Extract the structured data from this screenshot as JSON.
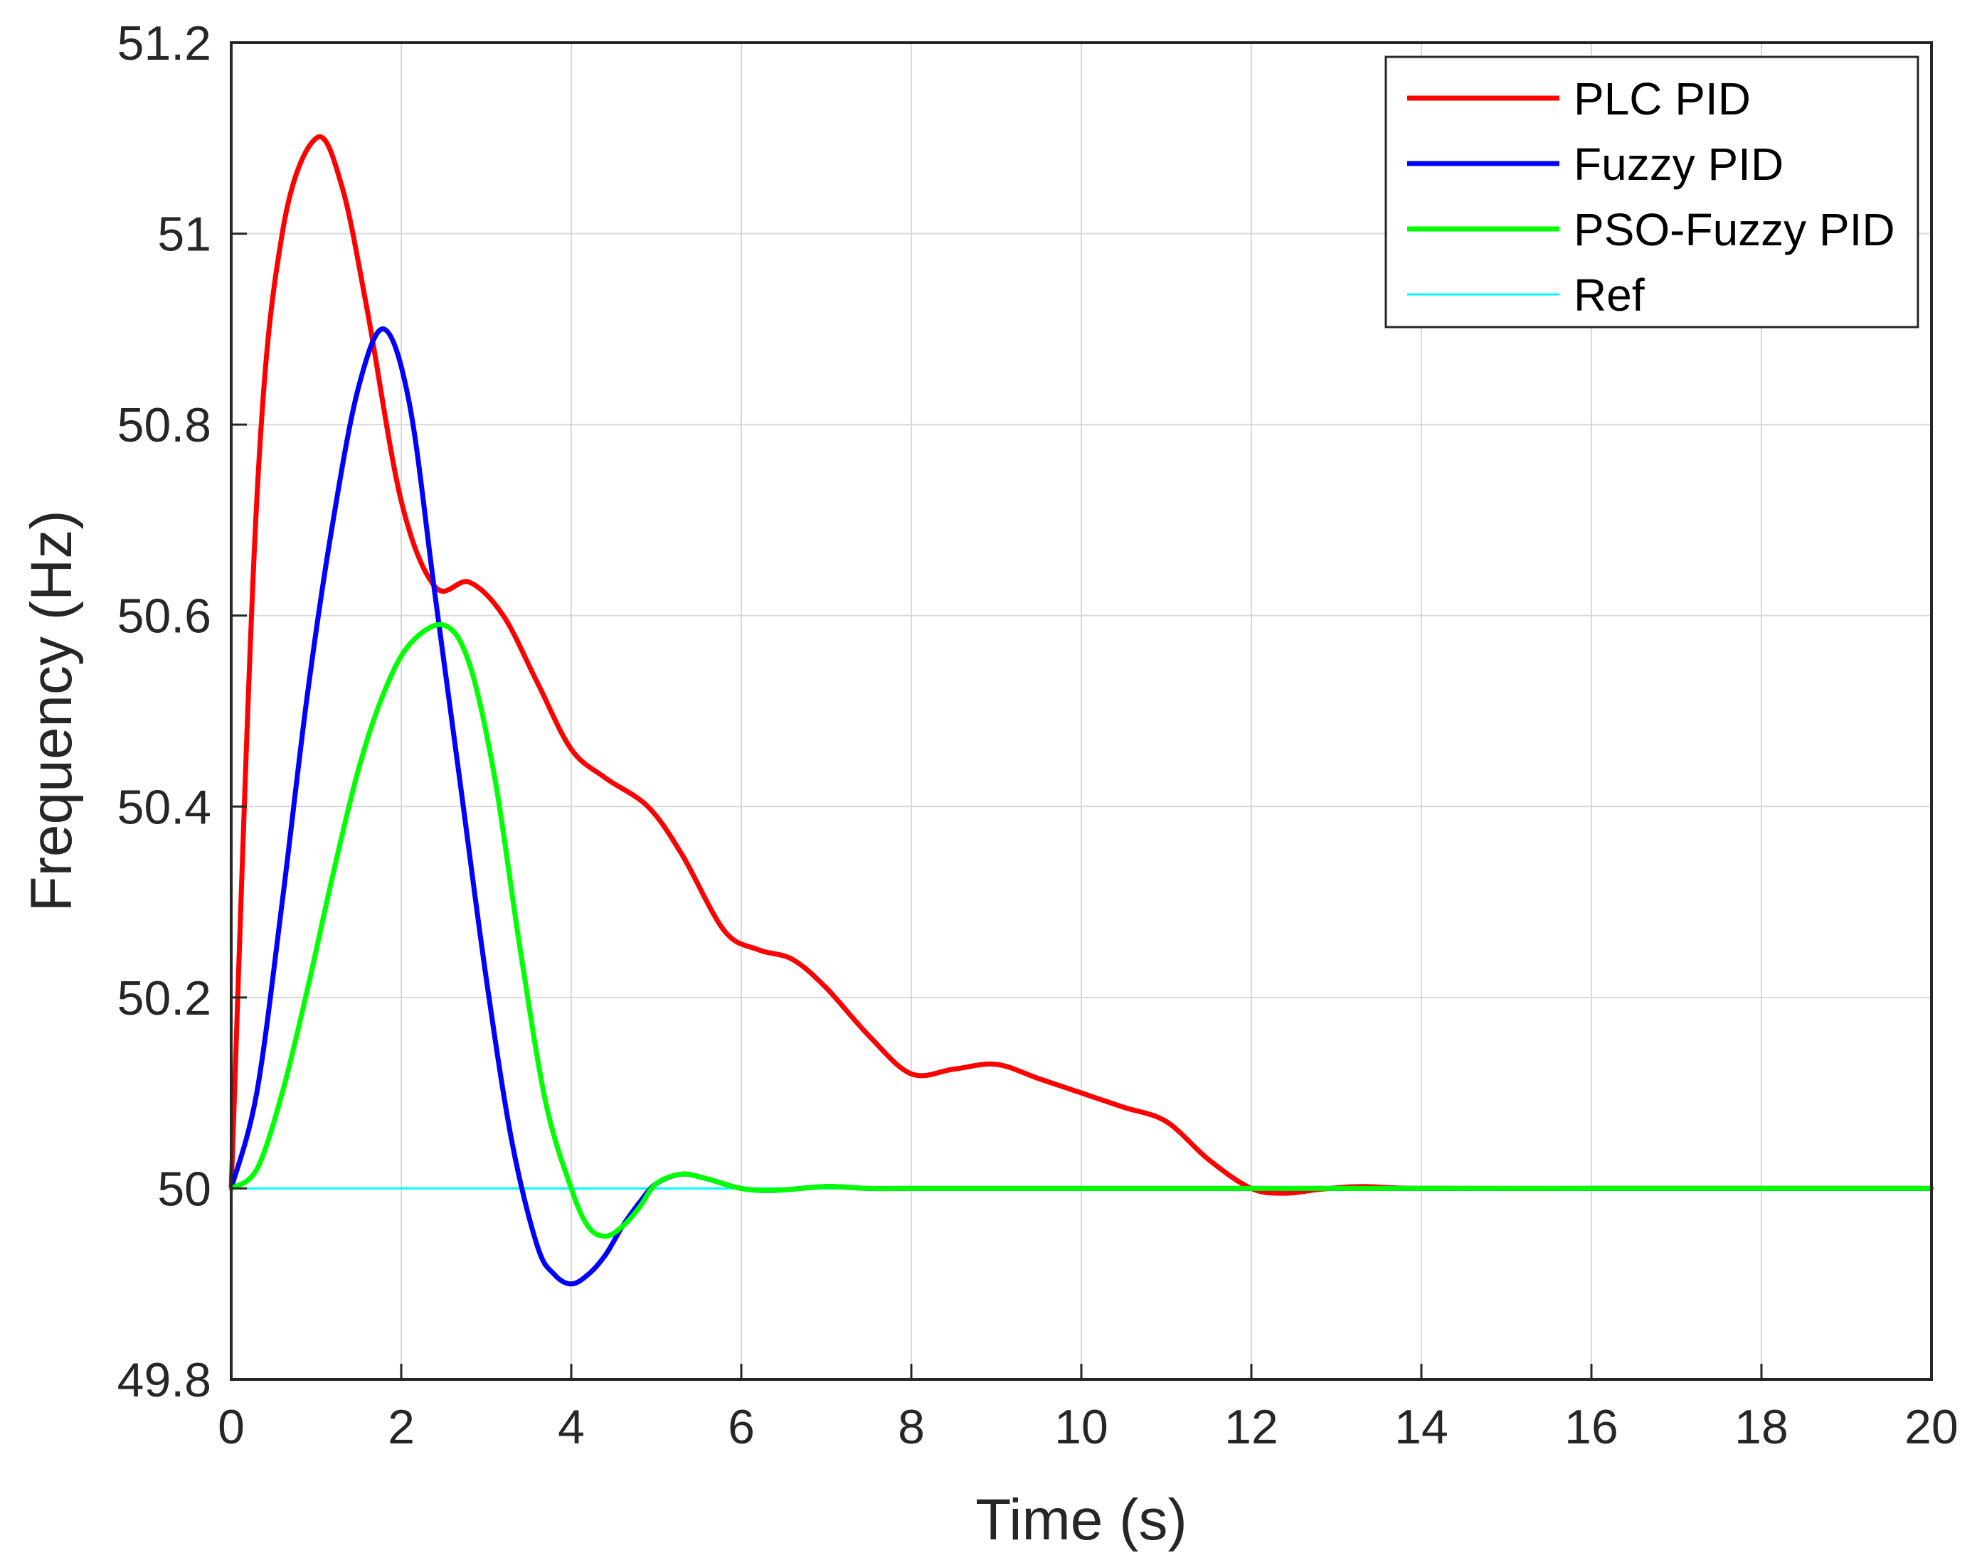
{
  "chart_data": {
    "type": "line",
    "title": "",
    "xlabel": "Time (s)",
    "ylabel": "Frequency (Hz)",
    "xlim": [
      0,
      20
    ],
    "ylim": [
      49.8,
      51.2
    ],
    "xticks": [
      0,
      2,
      4,
      6,
      8,
      10,
      12,
      14,
      16,
      18,
      20
    ],
    "xtick_labels": [
      "0",
      "2",
      "4",
      "6",
      "8",
      "10",
      "12",
      "14",
      "16",
      "18",
      "20"
    ],
    "yticks": [
      49.8,
      50,
      50.2,
      50.4,
      50.6,
      50.8,
      51,
      51.2
    ],
    "ytick_labels": [
      "49.8",
      "50",
      "50.2",
      "50.4",
      "50.6",
      "50.8",
      "51",
      "51.2"
    ],
    "grid": true,
    "legend_position": "top-right",
    "series": [
      {
        "name": "PLC PID",
        "color": "#ff0000",
        "x": [
          0,
          0.3,
          0.6,
          1.0,
          1.3,
          1.6,
          2.0,
          2.4,
          2.8,
          3.2,
          3.6,
          4.0,
          4.4,
          4.9,
          5.3,
          5.8,
          6.2,
          6.6,
          7.0,
          7.5,
          8.0,
          8.5,
          9.0,
          9.5,
          10.0,
          10.5,
          11.0,
          11.5,
          12.0,
          12.4,
          12.8,
          13.3,
          14.0,
          16.0,
          18.0,
          20.0
        ],
        "y": [
          50.0,
          50.72,
          51.0,
          51.1,
          51.05,
          50.92,
          50.72,
          50.63,
          50.635,
          50.6,
          50.53,
          50.46,
          50.43,
          50.4,
          50.35,
          50.27,
          50.25,
          50.24,
          50.21,
          50.16,
          50.12,
          50.125,
          50.13,
          50.115,
          50.1,
          50.085,
          50.07,
          50.03,
          50.0,
          49.995,
          49.999,
          50.002,
          50.0,
          50.0,
          50.0,
          50.0
        ]
      },
      {
        "name": "Fuzzy PID",
        "color": "#0000ff",
        "x": [
          0,
          0.3,
          0.6,
          0.9,
          1.2,
          1.5,
          1.8,
          2.1,
          2.4,
          2.7,
          3.0,
          3.3,
          3.6,
          3.8,
          4.0,
          4.2,
          4.4,
          4.6,
          4.8,
          5.0,
          5.3,
          5.6,
          6.0,
          6.4,
          7.0,
          7.5,
          8.0,
          10.0,
          14.0,
          20.0
        ],
        "y": [
          50.0,
          50.1,
          50.3,
          50.52,
          50.7,
          50.84,
          50.9,
          50.82,
          50.62,
          50.42,
          50.22,
          50.05,
          49.94,
          49.91,
          49.9,
          49.91,
          49.93,
          49.96,
          49.985,
          50.005,
          50.015,
          50.01,
          50.0,
          49.998,
          50.002,
          50.0,
          50.0,
          50.0,
          50.0,
          50.0
        ]
      },
      {
        "name": "PSO-Fuzzy PID",
        "color": "#00ff00",
        "x": [
          0,
          0.3,
          0.6,
          0.9,
          1.2,
          1.5,
          1.8,
          2.1,
          2.5,
          2.8,
          3.1,
          3.4,
          3.7,
          4.0,
          4.2,
          4.4,
          4.6,
          4.8,
          5.0,
          5.3,
          5.6,
          6.0,
          6.4,
          7.0,
          7.5,
          8.0,
          10.0,
          14.0,
          20.0
        ],
        "y": [
          50.0,
          50.02,
          50.1,
          50.21,
          50.33,
          50.44,
          50.52,
          50.57,
          50.59,
          50.55,
          50.43,
          50.25,
          50.09,
          50.0,
          49.96,
          49.95,
          49.96,
          49.98,
          50.005,
          50.015,
          50.01,
          50.0,
          49.998,
          50.002,
          50.0,
          50.0,
          50.0,
          50.0,
          50.0
        ]
      },
      {
        "name": "Ref",
        "color": "#00ffff",
        "x": [
          0,
          20
        ],
        "y": [
          50.0,
          50.0
        ]
      }
    ]
  }
}
